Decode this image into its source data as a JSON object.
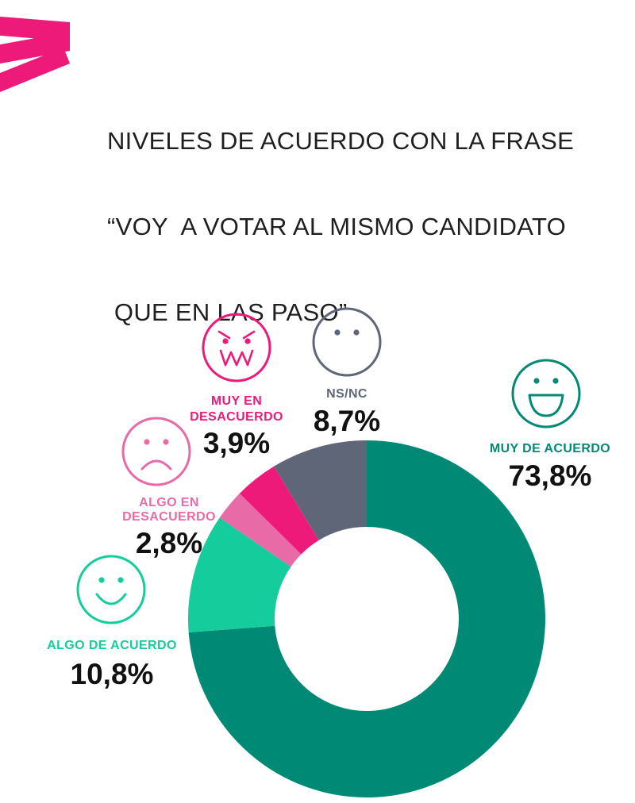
{
  "title": {
    "line1": "NIVELES DE ACUERDO CON LA FRASE",
    "line2": "“VOY  A VOTAR AL MISMO CANDIDATO",
    "line3": " QUE EN LAS PASO”"
  },
  "colors": {
    "brand": "#ee1a7a",
    "muy_de_acuerdo": "#008a75",
    "algo_de_acuerdo": "#14cc9c",
    "algo_en_desacuerdo": "#e86aa6",
    "muy_en_desacuerdo": "#ee1a7a",
    "ns_nc": "#5e6678"
  },
  "chart_data": {
    "type": "donut",
    "title": "",
    "categories": [
      "MUY DE ACUERDO",
      "ALGO DE ACUERDO",
      "ALGO EN DESACUERDO",
      "MUY EN DESACUERDO",
      "NS/NC"
    ],
    "values": [
      73.8,
      10.8,
      2.8,
      3.9,
      8.7
    ],
    "unit": "%",
    "labels": [
      {
        "category_lines": [
          "MUY DE ACUERDO"
        ],
        "value_text": "73,8%",
        "icon": "big-smile-face-icon"
      },
      {
        "category_lines": [
          "ALGO DE ACUERDO"
        ],
        "value_text": "10,8%",
        "icon": "smile-face-icon"
      },
      {
        "category_lines": [
          "ALGO EN",
          "DESACUERDO"
        ],
        "value_text": "2,8%",
        "icon": "sad-face-icon"
      },
      {
        "category_lines": [
          "MUY EN",
          "DESACUERDO"
        ],
        "value_text": "3,9%",
        "icon": "angry-face-icon"
      },
      {
        "category_lines": [
          "NS/NC"
        ],
        "value_text": "8,7%",
        "icon": "neutral-face-icon"
      }
    ]
  }
}
